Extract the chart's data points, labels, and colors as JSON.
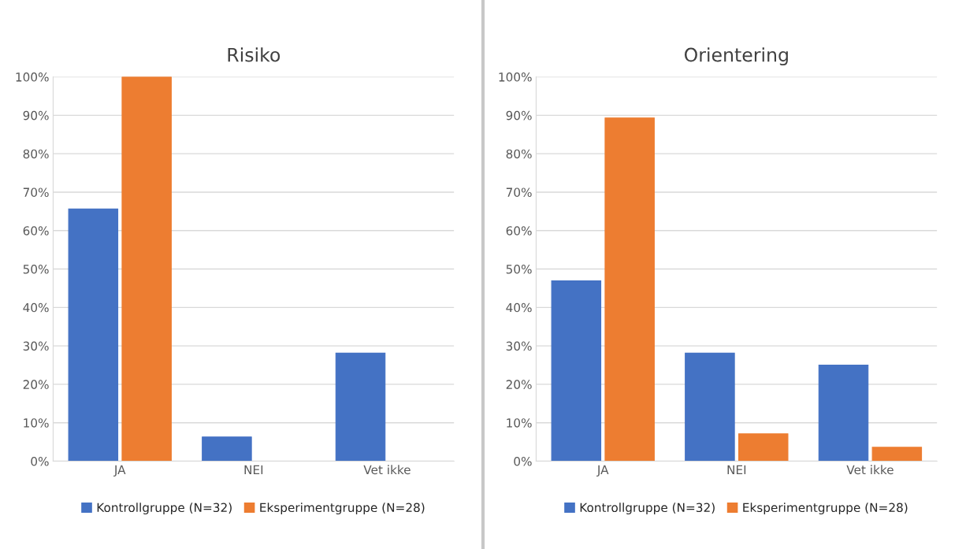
{
  "chart_data": [
    {
      "type": "bar",
      "title": "Risiko",
      "categories": [
        "JA",
        "NEI",
        "Vet ikke"
      ],
      "series": [
        {
          "name": "Kontrollgruppe (N=32)",
          "color": "#4472c4",
          "values": [
            65.6,
            6.3,
            28.1
          ]
        },
        {
          "name": "Eksperimentgruppe (N=28)",
          "color": "#ed7d31",
          "values": [
            100,
            0,
            0
          ]
        }
      ],
      "ylim": [
        0,
        100
      ],
      "yticks": [
        {
          "value": 0,
          "label": "0%"
        },
        {
          "value": 10,
          "label": "10%"
        },
        {
          "value": 20,
          "label": "20%"
        },
        {
          "value": 30,
          "label": "30%"
        },
        {
          "value": 40,
          "label": "40%"
        },
        {
          "value": 50,
          "label": "50%"
        },
        {
          "value": 60,
          "label": "60%"
        },
        {
          "value": 70,
          "label": "70%"
        },
        {
          "value": 80,
          "label": "80%"
        },
        {
          "value": 90,
          "label": "90%"
        },
        {
          "value": 100,
          "label": "100%"
        }
      ],
      "grid": "y",
      "legend": "bottom"
    },
    {
      "type": "bar",
      "title": "Orientering",
      "categories": [
        "JA",
        "NEI",
        "Vet ikke"
      ],
      "series": [
        {
          "name": "Kontrollgruppe (N=32)",
          "color": "#4472c4",
          "values": [
            46.9,
            28.1,
            25.0
          ]
        },
        {
          "name": "Eksperimentgruppe (N=28)",
          "color": "#ed7d31",
          "values": [
            89.3,
            7.1,
            3.6
          ]
        }
      ],
      "ylim": [
        0,
        100
      ],
      "yticks": [
        {
          "value": 0,
          "label": "0%"
        },
        {
          "value": 10,
          "label": "10%"
        },
        {
          "value": 20,
          "label": "20%"
        },
        {
          "value": 30,
          "label": "30%"
        },
        {
          "value": 40,
          "label": "40%"
        },
        {
          "value": 50,
          "label": "50%"
        },
        {
          "value": 60,
          "label": "60%"
        },
        {
          "value": 70,
          "label": "70%"
        },
        {
          "value": 80,
          "label": "80%"
        },
        {
          "value": 90,
          "label": "90%"
        },
        {
          "value": 100,
          "label": "100%"
        }
      ],
      "grid": "y",
      "legend": "bottom"
    }
  ]
}
